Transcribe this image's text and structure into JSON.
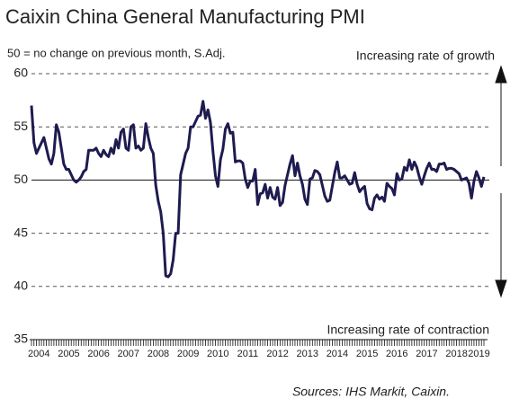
{
  "chart_data": {
    "type": "line",
    "title": "Caixin China General Manufacturing PMI",
    "subtitle": "50 = no change on previous month, S.Adj.",
    "annotations": [
      "Increasing rate of growth",
      "Increasing rate of contraction"
    ],
    "source": "Sources: IHS Markit, Caixin.",
    "categories": [
      null,
      null,
      null,
      "2004",
      null,
      null,
      null,
      null,
      null,
      null,
      null,
      null,
      null,
      null,
      null,
      "2005",
      null,
      null,
      null,
      null,
      null,
      null,
      null,
      null,
      null,
      null,
      null,
      "2006",
      null,
      null,
      null,
      null,
      null,
      null,
      null,
      null,
      null,
      null,
      null,
      "2007",
      null,
      null,
      null,
      null,
      null,
      null,
      null,
      null,
      null,
      null,
      null,
      "2008",
      null,
      null,
      null,
      null,
      null,
      null,
      null,
      null,
      null,
      null,
      null,
      "2009",
      null,
      null,
      null,
      null,
      null,
      null,
      null,
      null,
      null,
      null,
      null,
      "2010",
      null,
      null,
      null,
      null,
      null,
      null,
      null,
      null,
      null,
      null,
      null,
      "2011",
      null,
      null,
      null,
      null,
      null,
      null,
      null,
      null,
      null,
      null,
      null,
      "2012",
      null,
      null,
      null,
      null,
      null,
      null,
      null,
      null,
      null,
      null,
      null,
      "2013",
      null,
      null,
      null,
      null,
      null,
      null,
      null,
      null,
      null,
      null,
      null,
      "2014",
      null,
      null,
      null,
      null,
      null,
      null,
      null,
      null,
      null,
      null,
      null,
      "2015",
      null,
      null,
      null,
      null,
      null,
      null,
      null,
      null,
      null,
      null,
      null,
      "2016",
      null,
      null,
      null,
      null,
      null,
      null,
      null,
      null,
      null,
      null,
      null,
      "2017",
      null,
      null,
      null,
      null,
      null,
      null,
      null,
      null,
      null,
      null,
      null,
      "2018",
      null,
      null,
      null,
      null,
      null,
      null,
      null,
      null,
      "2019",
      null,
      null
    ],
    "series": [
      {
        "name": "PMI",
        "color": "#1e1b4f",
        "values": [
          57,
          53.5,
          52.5,
          53,
          53.5,
          54,
          53,
          52,
          51.5,
          52.5,
          55.2,
          54.5,
          53,
          51.5,
          51,
          51,
          50.5,
          50,
          49.8,
          50,
          50.3,
          50.8,
          51,
          52.8,
          52.8,
          52.8,
          53,
          52.5,
          52.2,
          52.8,
          52.4,
          52.2,
          53,
          52.5,
          53.8,
          53,
          54.5,
          54.8,
          53,
          52.8,
          55,
          55.2,
          53,
          53.2,
          52.8,
          53,
          55.3,
          54,
          53,
          52.5,
          49.5,
          48,
          47,
          45,
          41,
          40.9,
          41.2,
          42.5,
          45,
          45,
          50.5,
          51.5,
          52.5,
          53,
          55,
          55,
          55.5,
          56,
          56.1,
          57.4,
          55.8,
          56.6,
          55.4,
          52.7,
          50.4,
          49.4,
          51.9,
          52.9,
          54.8,
          55.3,
          54.4,
          54.5,
          51.7,
          51.8,
          51.8,
          51.6,
          50.1,
          49.3,
          49.9,
          49.9,
          51.0,
          47.7,
          48.7,
          48.8,
          49.6,
          48.3,
          49.3,
          48.4,
          48.2,
          49.3,
          47.6,
          47.9,
          49.5,
          50.5,
          51.5,
          52.3,
          50.4,
          51.6,
          50.4,
          49.6,
          48.2,
          47.7,
          50.1,
          50.2,
          50.9,
          50.8,
          50.5,
          49.5,
          48.5,
          48.0,
          48.1,
          49.4,
          50.7,
          51.7,
          50.2,
          50.2,
          50.4,
          50.0,
          49.6,
          49.7,
          50.7,
          49.6,
          48.9,
          49.2,
          49.4,
          47.8,
          47.3,
          47.2,
          48.3,
          48.6,
          48.2,
          48.4,
          48.0,
          49.7,
          49.4,
          49.2,
          48.6,
          50.6,
          50.0,
          50.1,
          51.2,
          50.9,
          51.9,
          51.0,
          51.7,
          51.2,
          50.3,
          49.6,
          50.4,
          51.1,
          51.6,
          51.0,
          51.0,
          50.8,
          51.5,
          51.5,
          51.6,
          51.0,
          51.1,
          51.1,
          51.0,
          50.8,
          50.6,
          50.0,
          50.1,
          50.2,
          49.7,
          48.3,
          49.9,
          50.8,
          50.2,
          49.4,
          50.3
        ]
      }
    ],
    "ylim": [
      35,
      60
    ],
    "yticks": [
      35,
      40,
      45,
      50,
      55,
      60
    ],
    "grid": true,
    "reference_line": 50
  }
}
